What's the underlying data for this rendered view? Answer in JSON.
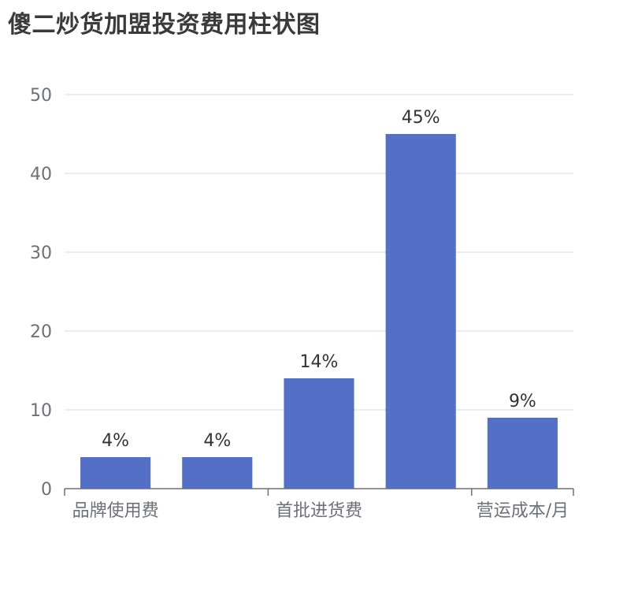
{
  "title": "傻二炒货加盟投资费用柱状图",
  "colors": {
    "bar": "#5470c6",
    "grid": "#e0e6f1",
    "axis": "#6e7079"
  },
  "chart_data": {
    "type": "bar",
    "categories": [
      "品牌使用费",
      "",
      "首批进货费",
      "",
      "营运成本/月"
    ],
    "values": [
      4,
      4,
      14,
      45,
      9
    ],
    "data_labels": [
      "4%",
      "4%",
      "14%",
      "45%",
      "9%"
    ],
    "ylim": [
      0,
      50
    ],
    "yticks": [
      0,
      10,
      20,
      30,
      40,
      50
    ],
    "grid": true
  }
}
